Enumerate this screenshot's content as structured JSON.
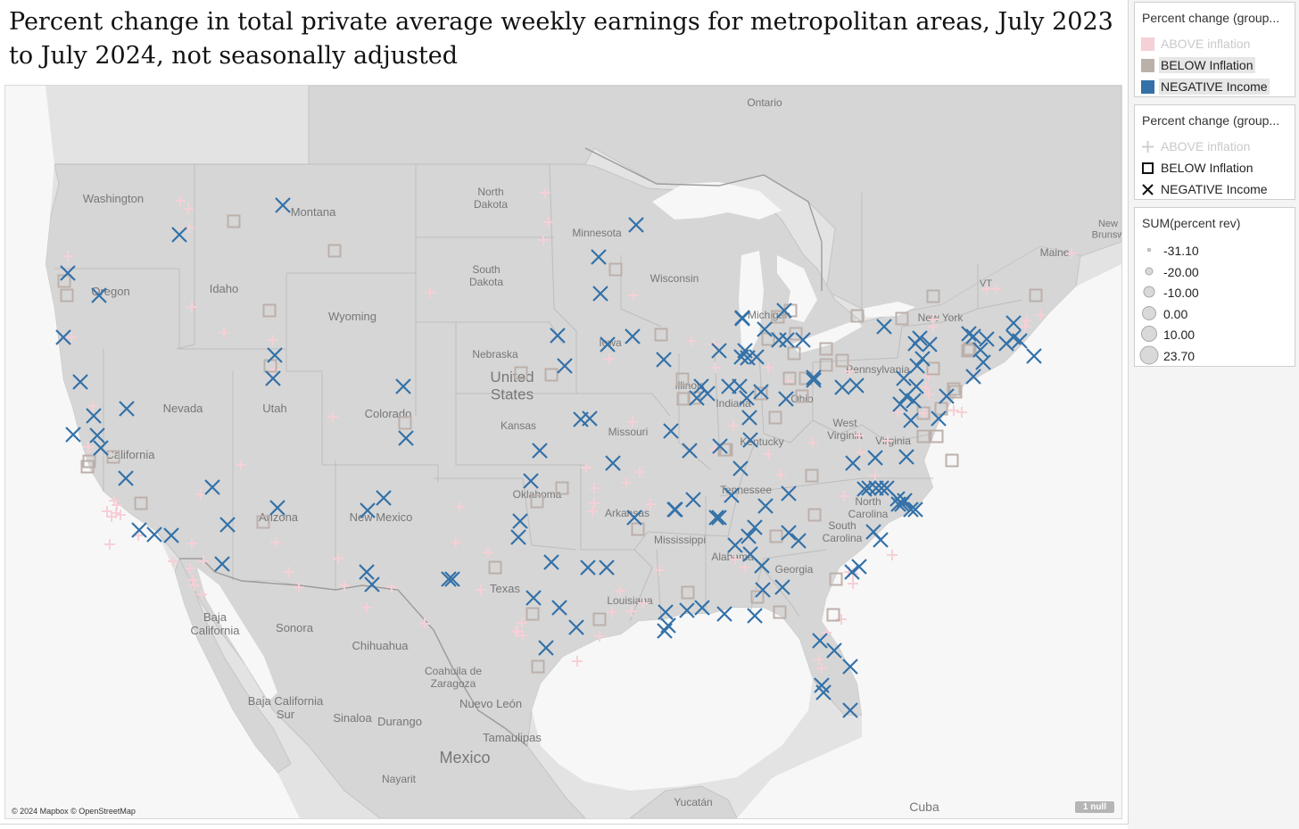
{
  "title": "Percent change in total private average weekly earnings for metropolitan areas, July 2023 to July 2024, not seasonally adjusted",
  "map": {
    "attribution": "© 2024 Mapbox © OpenStreetMap",
    "null_badge": "1 null",
    "place_labels": [
      "Ontario",
      "Washington",
      "Montana",
      "North Dakota",
      "Minnesota",
      "Wisconsin",
      "Oregon",
      "Idaho",
      "Wyoming",
      "South Dakota",
      "Nebraska",
      "United States",
      "Iowa",
      "Michigan",
      "New York",
      "Maine",
      "Nevada",
      "Utah",
      "Colorado",
      "Kansas",
      "Missouri",
      "Illinois",
      "Indiana",
      "Ohio",
      "Pennsylvania",
      "West Virginia",
      "Virginia",
      "Kentucky",
      "California",
      "Oklahoma",
      "Arkansas",
      "Tennessee",
      "North Carolina",
      "South Carolina",
      "Arizona",
      "New Mexico",
      "Texas",
      "Mississippi",
      "Alabama",
      "Georgia",
      "Louisiana",
      "Baja California",
      "Sonora",
      "Chihuahua",
      "Coahuila de Zaragoza",
      "Baja California Sur",
      "Sinaloa",
      "Durango",
      "Nuevo León",
      "Tamaulipas",
      "Mexico",
      "Nayarit",
      "Yucatán",
      "Cuba",
      "New Brunswick",
      "VT"
    ]
  },
  "legend_color": {
    "title": "Percent change (group...",
    "items": [
      {
        "label": "ABOVE inflation",
        "color": "#f5d0d6"
      },
      {
        "label": "BELOW Inflation",
        "color": "#bcb0ab"
      },
      {
        "label": "NEGATIVE Income",
        "color": "#3371a8"
      }
    ]
  },
  "legend_shape": {
    "title": "Percent change (group...",
    "items": [
      {
        "label": "ABOVE inflation",
        "shape": "plus-icon"
      },
      {
        "label": "BELOW Inflation",
        "shape": "square-icon"
      },
      {
        "label": "NEGATIVE Income",
        "shape": "x-icon"
      }
    ]
  },
  "legend_size": {
    "title": "SUM(percent rev)",
    "items": [
      "-31.10",
      "-20.00",
      "-10.00",
      "0.00",
      "10.00",
      "23.70"
    ]
  }
}
